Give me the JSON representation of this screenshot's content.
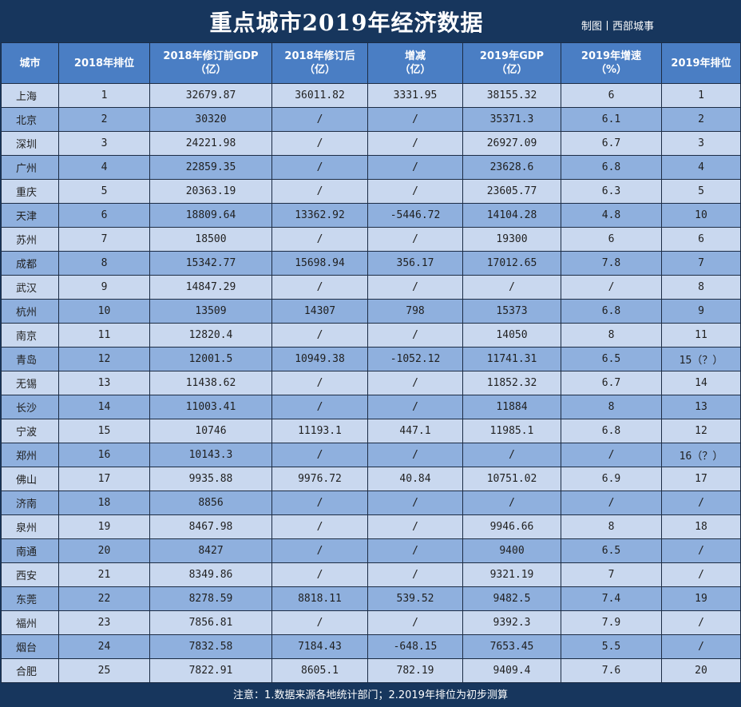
{
  "header": {
    "title": "重点城市2019年经济数据",
    "credit": "制图丨西部城事"
  },
  "columns": [
    {
      "line1": "城市",
      "line2": ""
    },
    {
      "line1": "2018年排位",
      "line2": ""
    },
    {
      "line1": "2018年修订前GDP",
      "line2": "（亿）"
    },
    {
      "line1": "2018年修订后",
      "line2": "（亿）"
    },
    {
      "line1": "增减",
      "line2": "（亿）"
    },
    {
      "line1": "2019年GDP",
      "line2": "（亿）"
    },
    {
      "line1": "2019年增速",
      "line2": "（%）"
    },
    {
      "line1": "2019年排位",
      "line2": ""
    }
  ],
  "rows": [
    [
      "上海",
      "1",
      "32679.87",
      "36011.82",
      "3331.95",
      "38155.32",
      "6",
      "1"
    ],
    [
      "北京",
      "2",
      "30320",
      "/",
      "/",
      "35371.3",
      "6.1",
      "2"
    ],
    [
      "深圳",
      "3",
      "24221.98",
      "/",
      "/",
      "26927.09",
      "6.7",
      "3"
    ],
    [
      "广州",
      "4",
      "22859.35",
      "/",
      "/",
      "23628.6",
      "6.8",
      "4"
    ],
    [
      "重庆",
      "5",
      "20363.19",
      "/",
      "/",
      "23605.77",
      "6.3",
      "5"
    ],
    [
      "天津",
      "6",
      "18809.64",
      "13362.92",
      "-5446.72",
      "14104.28",
      "4.8",
      "10"
    ],
    [
      "苏州",
      "7",
      "18500",
      "/",
      "/",
      "19300",
      "6",
      "6"
    ],
    [
      "成都",
      "8",
      "15342.77",
      "15698.94",
      "356.17",
      "17012.65",
      "7.8",
      "7"
    ],
    [
      "武汉",
      "9",
      "14847.29",
      "/",
      "/",
      "/",
      "/",
      "8"
    ],
    [
      "杭州",
      "10",
      "13509",
      "14307",
      "798",
      "15373",
      "6.8",
      "9"
    ],
    [
      "南京",
      "11",
      "12820.4",
      "/",
      "/",
      "14050",
      "8",
      "11"
    ],
    [
      "青岛",
      "12",
      "12001.5",
      "10949.38",
      "-1052.12",
      "11741.31",
      "6.5",
      "15（？）"
    ],
    [
      "无锡",
      "13",
      "11438.62",
      "/",
      "/",
      "11852.32",
      "6.7",
      "14"
    ],
    [
      "长沙",
      "14",
      "11003.41",
      "/",
      "/",
      "11884",
      "8",
      "13"
    ],
    [
      "宁波",
      "15",
      "10746",
      "11193.1",
      "447.1",
      "11985.1",
      "6.8",
      "12"
    ],
    [
      "郑州",
      "16",
      "10143.3",
      "/",
      "/",
      "/",
      "/",
      "16（？）"
    ],
    [
      "佛山",
      "17",
      "9935.88",
      "9976.72",
      "40.84",
      "10751.02",
      "6.9",
      "17"
    ],
    [
      "济南",
      "18",
      "8856",
      "/",
      "/",
      "/",
      "/",
      "/"
    ],
    [
      "泉州",
      "19",
      "8467.98",
      "/",
      "/",
      "9946.66",
      "8",
      "18"
    ],
    [
      "南通",
      "20",
      "8427",
      "/",
      "/",
      "9400",
      "6.5",
      "/"
    ],
    [
      "西安",
      "21",
      "8349.86",
      "/",
      "/",
      "9321.19",
      "7",
      "/"
    ],
    [
      "东莞",
      "22",
      "8278.59",
      "8818.11",
      "539.52",
      "9482.5",
      "7.4",
      "19"
    ],
    [
      "福州",
      "23",
      "7856.81",
      "/",
      "/",
      "9392.3",
      "7.9",
      "/"
    ],
    [
      "烟台",
      "24",
      "7832.58",
      "7184.43",
      "-648.15",
      "7653.45",
      "5.5",
      "/"
    ],
    [
      "合肥",
      "25",
      "7822.91",
      "8605.1",
      "782.19",
      "9409.4",
      "7.6",
      "20"
    ]
  ],
  "footer": {
    "note": "注意：1.数据来源各地统计部门；2.2019年排位为初步测算"
  },
  "colors": {
    "title_bg": "#17365d",
    "header_bg": "#4a7ec4",
    "row_light": "#c9d8ef",
    "row_dark": "#8fb0de"
  }
}
